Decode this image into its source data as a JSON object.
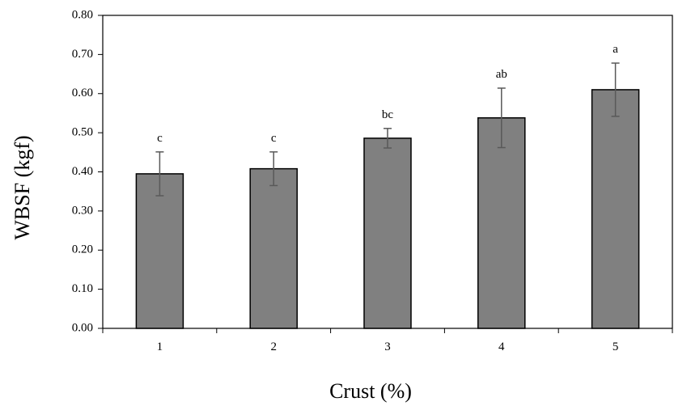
{
  "chart_data": {
    "type": "bar",
    "title": "",
    "xlabel": "Crust (%)",
    "ylabel": "WBSF (kgf)",
    "categories": [
      "1",
      "2",
      "3",
      "4",
      "5"
    ],
    "values": [
      0.395,
      0.408,
      0.486,
      0.538,
      0.61
    ],
    "error": [
      0.056,
      0.043,
      0.025,
      0.076,
      0.068
    ],
    "significance_labels": [
      "c",
      "c",
      "bc",
      "ab",
      "a"
    ],
    "ylim": [
      0,
      0.8
    ],
    "yticks": [
      "0.00",
      "0.10",
      "0.20",
      "0.30",
      "0.40",
      "0.50",
      "0.60",
      "0.70",
      "0.80"
    ],
    "grid": false,
    "legend": "none",
    "colors": {
      "bar_fill": "#808080",
      "bar_stroke": "#000000",
      "error_bar": "#595959",
      "axis": "#000000"
    }
  }
}
